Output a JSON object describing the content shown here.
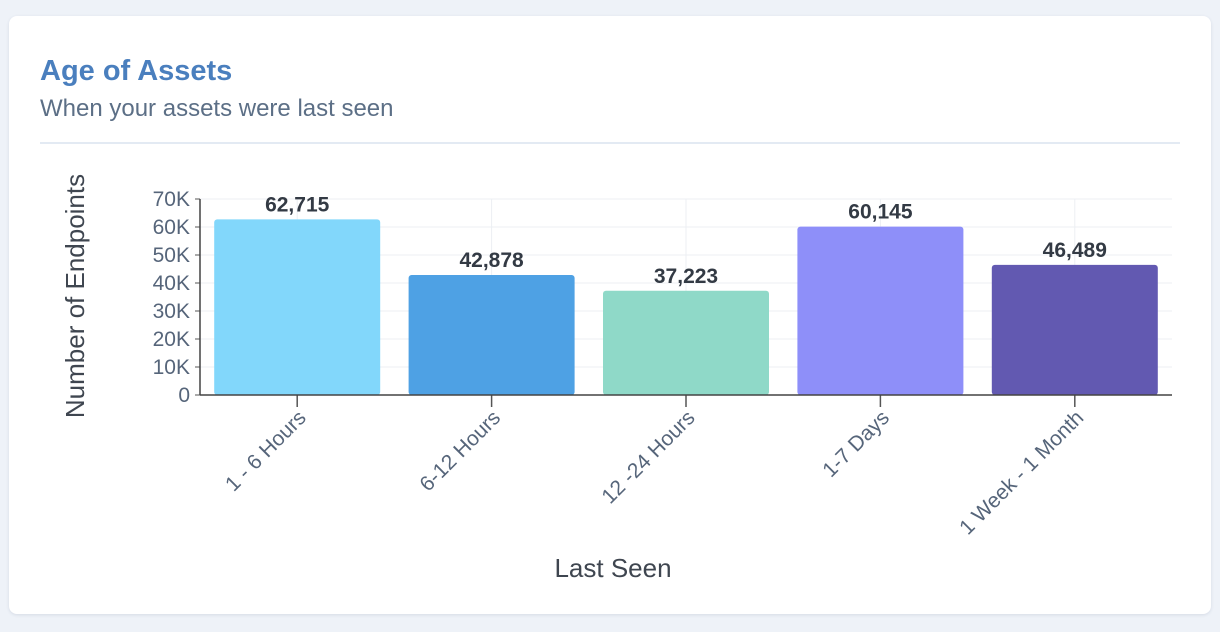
{
  "card": {
    "title": "Age of Assets",
    "subtitle": "When your assets were last seen"
  },
  "chart_data": {
    "type": "bar",
    "categories": [
      "1 - 6 Hours",
      "6-12 Hours",
      "12 -24 Hours",
      "1-7 Days",
      "1 Week - 1 Month"
    ],
    "values": [
      62715,
      42878,
      37223,
      60145,
      46489
    ],
    "value_labels": [
      "62,715",
      "42,878",
      "37,223",
      "60,145",
      "46,489"
    ],
    "bar_colors": [
      "#82d7fb",
      "#4ea1e4",
      "#8fd9c8",
      "#8e8ff9",
      "#6259b1"
    ],
    "xlabel": "Last Seen",
    "ylabel": "Number of Endpoints",
    "ylim": [
      0,
      70000
    ],
    "y_ticks": [
      0,
      10000,
      20000,
      30000,
      40000,
      50000,
      60000,
      70000
    ],
    "y_tick_labels": [
      "0",
      "10K",
      "20K",
      "30K",
      "40K",
      "50K",
      "60K",
      "70K"
    ],
    "grid": true,
    "legend": "none"
  }
}
